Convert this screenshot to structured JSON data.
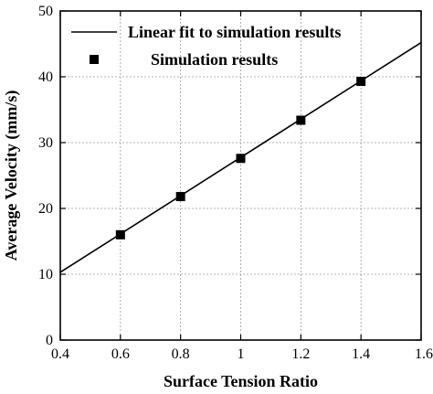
{
  "chart_data": {
    "type": "scatter",
    "xlabel": "Surface Tension Ratio",
    "ylabel": "Average Velocity (mm/s)",
    "xlim": [
      0.4,
      1.6
    ],
    "ylim": [
      0,
      50
    ],
    "x_ticks": [
      0.4,
      0.6,
      0.8,
      1.0,
      1.2,
      1.4,
      1.6
    ],
    "x_tick_labels": [
      "0.4",
      "0.6",
      "0.8",
      "1",
      "1.2",
      "1.4",
      "1.6"
    ],
    "y_ticks": [
      0,
      10,
      20,
      30,
      40,
      50
    ],
    "y_tick_labels": [
      "0",
      "10",
      "20",
      "30",
      "40",
      "50"
    ],
    "grid": true,
    "legend_position": "top-right",
    "series": [
      {
        "name": "Linear fit to simulation results",
        "kind": "line",
        "x": [
          0.4,
          1.6
        ],
        "y": [
          10.3,
          45.2
        ]
      },
      {
        "name": "Simulation results",
        "kind": "scatter",
        "marker": "square",
        "x": [
          0.6,
          0.8,
          1.0,
          1.2,
          1.4
        ],
        "y": [
          16.0,
          21.8,
          27.6,
          33.4,
          39.3
        ]
      }
    ]
  }
}
